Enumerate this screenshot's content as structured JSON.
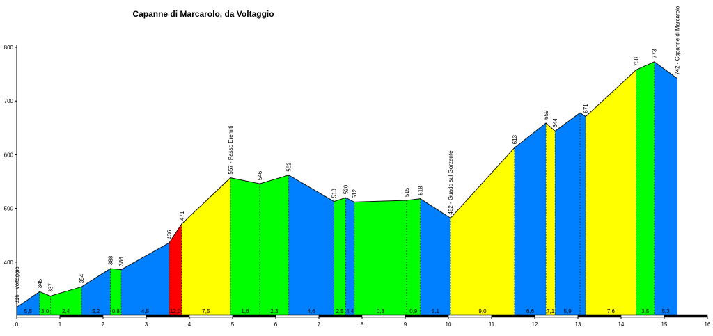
{
  "chart_data": {
    "type": "area",
    "title": "Capanne di Marcarolo, da Voltaggio",
    "xlabel": "",
    "ylabel": "",
    "xlim": [
      0,
      16
    ],
    "ylim": [
      300,
      800
    ],
    "x_ticks": [
      "0",
      "1",
      "2",
      "3",
      "4",
      "5",
      "6",
      "7",
      "8",
      "9",
      "10",
      "11",
      "12",
      "13",
      "14",
      "15",
      "16"
    ],
    "y_ticks": [
      "400",
      "500",
      "600",
      "700",
      "800"
    ],
    "profile_points": [
      {
        "x": 0.0,
        "y": 316,
        "label": "316 - Voltaggio"
      },
      {
        "x": 0.53,
        "y": 345,
        "label": "345"
      },
      {
        "x": 0.78,
        "y": 337,
        "label": "337"
      },
      {
        "x": 1.5,
        "y": 354,
        "label": "354"
      },
      {
        "x": 2.17,
        "y": 388,
        "label": "388"
      },
      {
        "x": 2.42,
        "y": 386,
        "label": "386"
      },
      {
        "x": 3.53,
        "y": 436,
        "label": "436"
      },
      {
        "x": 3.82,
        "y": 471,
        "label": "471"
      },
      {
        "x": 4.95,
        "y": 557,
        "label": "557 - Passo Eremiti"
      },
      {
        "x": 5.63,
        "y": 546,
        "label": "546"
      },
      {
        "x": 6.3,
        "y": 562,
        "label": "562"
      },
      {
        "x": 7.35,
        "y": 513,
        "label": "513"
      },
      {
        "x": 7.62,
        "y": 520,
        "label": "520"
      },
      {
        "x": 7.82,
        "y": 512,
        "label": "512"
      },
      {
        "x": 9.03,
        "y": 515,
        "label": "515"
      },
      {
        "x": 9.35,
        "y": 518,
        "label": "518"
      },
      {
        "x": 10.05,
        "y": 482,
        "label": "482 - Guado sul Gorzente"
      },
      {
        "x": 11.53,
        "y": 613,
        "label": "613"
      },
      {
        "x": 12.26,
        "y": 659,
        "label": "659"
      },
      {
        "x": 12.47,
        "y": 644,
        "label": "644"
      },
      {
        "x": 13.05,
        "y": 678,
        "label": ""
      },
      {
        "x": 13.18,
        "y": 671,
        "label": "671"
      },
      {
        "x": 14.35,
        "y": 758,
        "label": "758"
      },
      {
        "x": 14.77,
        "y": 773,
        "label": "773"
      },
      {
        "x": 15.3,
        "y": 742,
        "label": "742 - Capanne di Marcarolo"
      }
    ],
    "segments": [
      {
        "from": 0.0,
        "to": 0.53,
        "gradient": "5,5",
        "color": "#0080ff"
      },
      {
        "from": 0.53,
        "to": 0.78,
        "gradient": "3,0",
        "color": "#00ff00"
      },
      {
        "from": 0.78,
        "to": 1.5,
        "gradient": "2,4",
        "color": "#00ff00"
      },
      {
        "from": 1.5,
        "to": 2.17,
        "gradient": "5,2",
        "color": "#0080ff"
      },
      {
        "from": 2.17,
        "to": 2.42,
        "gradient": "0,8",
        "color": "#00ff00"
      },
      {
        "from": 2.42,
        "to": 3.53,
        "gradient": "4,5",
        "color": "#0080ff"
      },
      {
        "from": 3.53,
        "to": 3.82,
        "gradient": "12,0",
        "color": "#ff0000"
      },
      {
        "from": 3.82,
        "to": 4.95,
        "gradient": "7,5",
        "color": "#ffff00"
      },
      {
        "from": 4.95,
        "to": 5.63,
        "gradient": "1,6",
        "color": "#00ff00"
      },
      {
        "from": 5.63,
        "to": 6.3,
        "gradient": "2,3",
        "color": "#00ff00"
      },
      {
        "from": 6.3,
        "to": 7.35,
        "gradient": "4,6",
        "color": "#0080ff"
      },
      {
        "from": 7.35,
        "to": 7.62,
        "gradient": "2,5",
        "color": "#00ff00"
      },
      {
        "from": 7.62,
        "to": 7.82,
        "gradient": "4,4",
        "color": "#0080ff"
      },
      {
        "from": 7.82,
        "to": 9.03,
        "gradient": "0,3",
        "color": "#00ff00"
      },
      {
        "from": 9.03,
        "to": 9.35,
        "gradient": "0,9",
        "color": "#00ff00"
      },
      {
        "from": 9.35,
        "to": 10.05,
        "gradient": "5,1",
        "color": "#0080ff"
      },
      {
        "from": 10.05,
        "to": 11.53,
        "gradient": "9,0",
        "color": "#ffff00"
      },
      {
        "from": 11.53,
        "to": 12.26,
        "gradient": "6,6",
        "color": "#0080ff"
      },
      {
        "from": 12.26,
        "to": 12.47,
        "gradient": "7,1",
        "color": "#ffff00"
      },
      {
        "from": 12.47,
        "to": 13.05,
        "gradient": "5,9",
        "color": "#0080ff"
      },
      {
        "from": 13.05,
        "to": 13.18,
        "gradient": "",
        "color": "#0080ff"
      },
      {
        "from": 13.18,
        "to": 14.35,
        "gradient": "7,6",
        "color": "#ffff00"
      },
      {
        "from": 14.35,
        "to": 14.77,
        "gradient": "3,5",
        "color": "#00ff00"
      },
      {
        "from": 14.77,
        "to": 15.3,
        "gradient": "5,3",
        "color": "#0080ff"
      }
    ],
    "grid": false,
    "legend": "none"
  }
}
